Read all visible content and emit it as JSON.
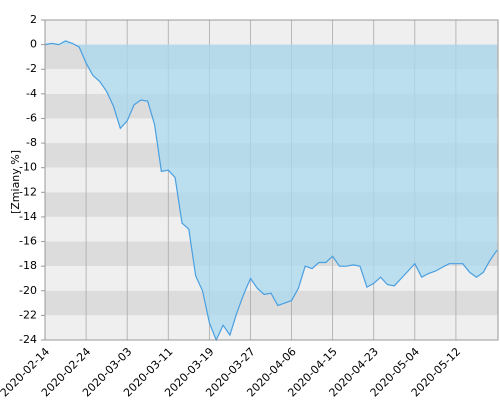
{
  "chart_data": {
    "type": "area",
    "y_label": "[Zmiany %]",
    "categories": [
      "2020-02-14",
      null,
      null,
      null,
      null,
      null,
      "2020-02-24",
      null,
      null,
      null,
      null,
      null,
      "2020-03-03",
      null,
      null,
      null,
      null,
      null,
      "2020-03-11",
      null,
      null,
      null,
      null,
      null,
      "2020-03-19",
      null,
      null,
      null,
      null,
      null,
      "2020-03-27",
      null,
      null,
      null,
      null,
      null,
      "2020-04-06",
      null,
      null,
      null,
      null,
      null,
      "2020-04-15",
      null,
      null,
      null,
      null,
      null,
      "2020-04-23",
      null,
      null,
      null,
      null,
      null,
      "2020-05-04",
      null,
      null,
      null,
      null,
      null,
      "2020-05-12",
      null,
      null,
      null,
      null,
      null,
      null
    ],
    "values": [
      0,
      0.1,
      0,
      0.3,
      0.1,
      -0.2,
      -1.5,
      -2.5,
      -3.0,
      -3.8,
      -5.0,
      -6.8,
      -6.2,
      -4.9,
      -4.5,
      -4.6,
      -6.5,
      -10.3,
      -10.2,
      -10.8,
      -14.5,
      -15.0,
      -18.8,
      -20.0,
      -22.6,
      -24.0,
      -22.8,
      -23.6,
      -21.8,
      -20.3,
      -19.0,
      -19.8,
      -20.3,
      -20.2,
      -21.2,
      -21.0,
      -20.8,
      -19.8,
      -18.0,
      -18.2,
      -17.7,
      -17.7,
      -17.2,
      -18.0,
      -18.0,
      -17.9,
      -18.0,
      -19.7,
      -19.4,
      -18.9,
      -19.5,
      -19.6,
      -19.0,
      -18.4,
      -17.8,
      -18.9,
      -18.6,
      -18.4,
      -18.1,
      -17.8,
      -17.8,
      -17.8,
      -18.5,
      -18.9,
      -18.5,
      -17.5,
      -16.7
    ],
    "line_color": "#4a9fe0",
    "fill_color": "#a9d9ef",
    "ylim": [
      -24,
      2
    ],
    "yticks": [
      2,
      0,
      -2,
      -4,
      -6,
      -8,
      -10,
      -12,
      -14,
      -16,
      -18,
      -20,
      -22,
      -24
    ],
    "grid": true
  }
}
